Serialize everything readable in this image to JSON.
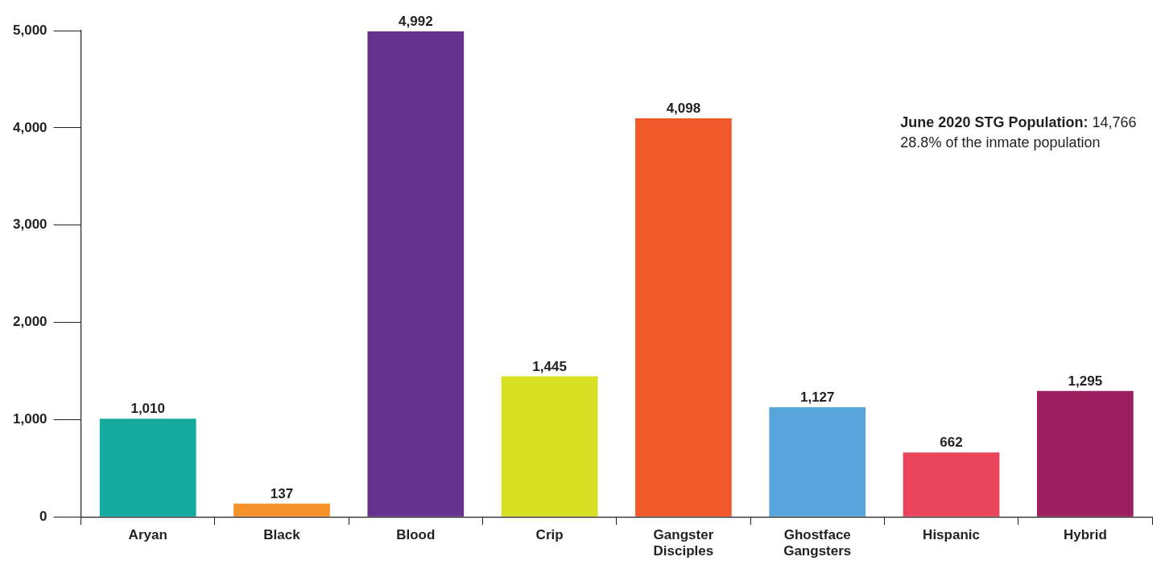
{
  "chart_data": {
    "type": "bar",
    "categories": [
      "Aryan",
      "Black",
      "Blood",
      "Crip",
      "Gangster Disciples",
      "Ghostface Gangsters",
      "Hispanic",
      "Hybrid"
    ],
    "values": [
      1010,
      137,
      4992,
      1445,
      4098,
      1127,
      662,
      1295
    ],
    "value_labels": [
      "1,010",
      "137",
      "4,992",
      "1,445",
      "4,098",
      "1,127",
      "662",
      "1,295"
    ],
    "colors": [
      "#16aa9e",
      "#f7922a",
      "#64318d",
      "#d7e024",
      "#f05a2b",
      "#57a5db",
      "#e8445a",
      "#9b1f5e"
    ],
    "ylim": [
      0,
      5000
    ],
    "yticks": [
      0,
      {
        "value": 1000,
        "label": "1,000"
      },
      {
        "value": 2000,
        "label": "2,000"
      },
      {
        "value": 3000,
        "label": "3,000"
      },
      {
        "value": 4000,
        "label": "4,000"
      },
      {
        "value": 5000,
        "label": "5,000"
      }
    ],
    "grid": false,
    "legend": false,
    "annotations": [
      "June 2020 STG Population: 14,766",
      "28.8% of the inmate population"
    ]
  }
}
